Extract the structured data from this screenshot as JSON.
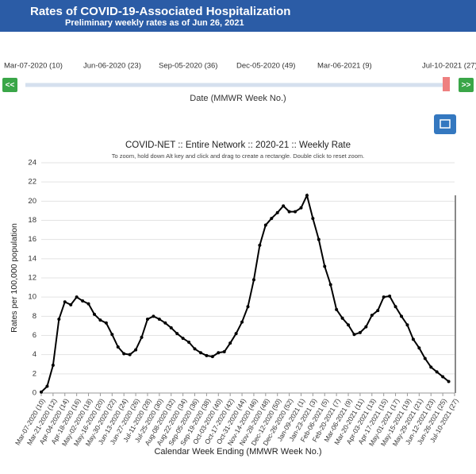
{
  "header": {
    "title": "Rates of COVID-19-Associated Hospitalization",
    "subtitle": "Preliminary weekly rates as of Jun 26, 2021"
  },
  "slider": {
    "labels": [
      "Mar-07-2020 (10)",
      "Jun-06-2020 (23)",
      "Sep-05-2020 (36)",
      "Dec-05-2020 (49)",
      "Mar-06-2021 (9)",
      "Jul-10-2021 (27)"
    ],
    "prev": "<<",
    "next": ">>",
    "caption": "Date (MMWR Week No.)"
  },
  "chart_data": {
    "type": "line",
    "title": "COVID-NET :: Entire Network :: 2020-21 :: Weekly Rate",
    "subtitle": "To zoom, hold down Alt key and click and drag to create a rectangle. Double click to reset zoom.",
    "x_label": "Calendar Week Ending (MMWR Week No.)",
    "y_label": "Rates per 100,000 population",
    "categories": [
      "Mar-07-2020 (10)",
      null,
      "Mar-21-2020 (12)",
      null,
      "Apr-04-2020 (14)",
      null,
      "Apr-18-2020 (16)",
      null,
      "May-02-2020 (18)",
      null,
      "May-16-2020 (20)",
      null,
      "May-30-2020 (22)",
      null,
      "Jun-13-2020 (24)",
      null,
      "Jun-27-2020 (26)",
      null,
      "Jul-11-2020 (28)",
      null,
      "Jul-25-2020 (30)",
      null,
      "Aug-08-2020 (32)",
      null,
      "Aug-22-2020 (34)",
      null,
      "Sep-05-2020 (36)",
      null,
      "Sep-19-2020 (38)",
      null,
      "Oct-03-2020 (40)",
      null,
      "Oct-17-2020 (42)",
      null,
      "Oct-31-2020 (44)",
      null,
      "Nov-14-2020 (46)",
      null,
      "Nov-28-2020 (48)",
      null,
      "Dec-12-2020 (50)",
      null,
      "Dec-26-2020 (52)",
      null,
      "Jan-09-2021 (1)",
      null,
      "Jan-23-2021 (3)",
      null,
      "Feb-06-2021 (5)",
      null,
      "Feb-20-2021 (7)",
      null,
      "Mar-06-2021 (9)",
      null,
      "Mar-20-2021 (11)",
      null,
      "Apr-03-2021 (13)",
      null,
      "Apr-17-2021 (15)",
      null,
      "May-01-2021 (17)",
      null,
      "May-15-2021 (19)",
      null,
      "May-29-2021 (21)",
      null,
      "Jun-12-2021 (23)",
      null,
      "Jun-26-2021 (25)",
      null,
      "Jul-10-2021 (27)"
    ],
    "series": [
      {
        "name": "Weekly Rate",
        "color": "#000000",
        "values": [
          0.1,
          0.7,
          2.9,
          7.7,
          9.5,
          9.2,
          10.0,
          9.6,
          9.3,
          8.2,
          7.6,
          7.3,
          6.1,
          4.8,
          4.1,
          4.0,
          4.5,
          5.8,
          7.7,
          8.0,
          7.7,
          7.3,
          6.8,
          6.2,
          5.7,
          5.3,
          4.6,
          4.2,
          3.9,
          3.8,
          4.2,
          4.3,
          5.2,
          6.2,
          7.4,
          9.0,
          11.8,
          15.4,
          17.5,
          18.2,
          18.8,
          19.5,
          18.9,
          18.9,
          19.3,
          20.6,
          18.2,
          16.0,
          13.2,
          11.3,
          8.7,
          7.8,
          7.1,
          6.1,
          6.3,
          6.9,
          8.1,
          8.6,
          10.0,
          10.1,
          9.0,
          8.0,
          7.1,
          5.6,
          4.7,
          3.6,
          2.7,
          2.2,
          1.7,
          1.2,
          null
        ]
      }
    ],
    "ylim": [
      0,
      24
    ],
    "yticks": [
      0,
      2,
      4,
      6,
      8,
      10,
      12,
      14,
      16,
      18,
      20,
      22,
      24
    ],
    "grid": true
  }
}
